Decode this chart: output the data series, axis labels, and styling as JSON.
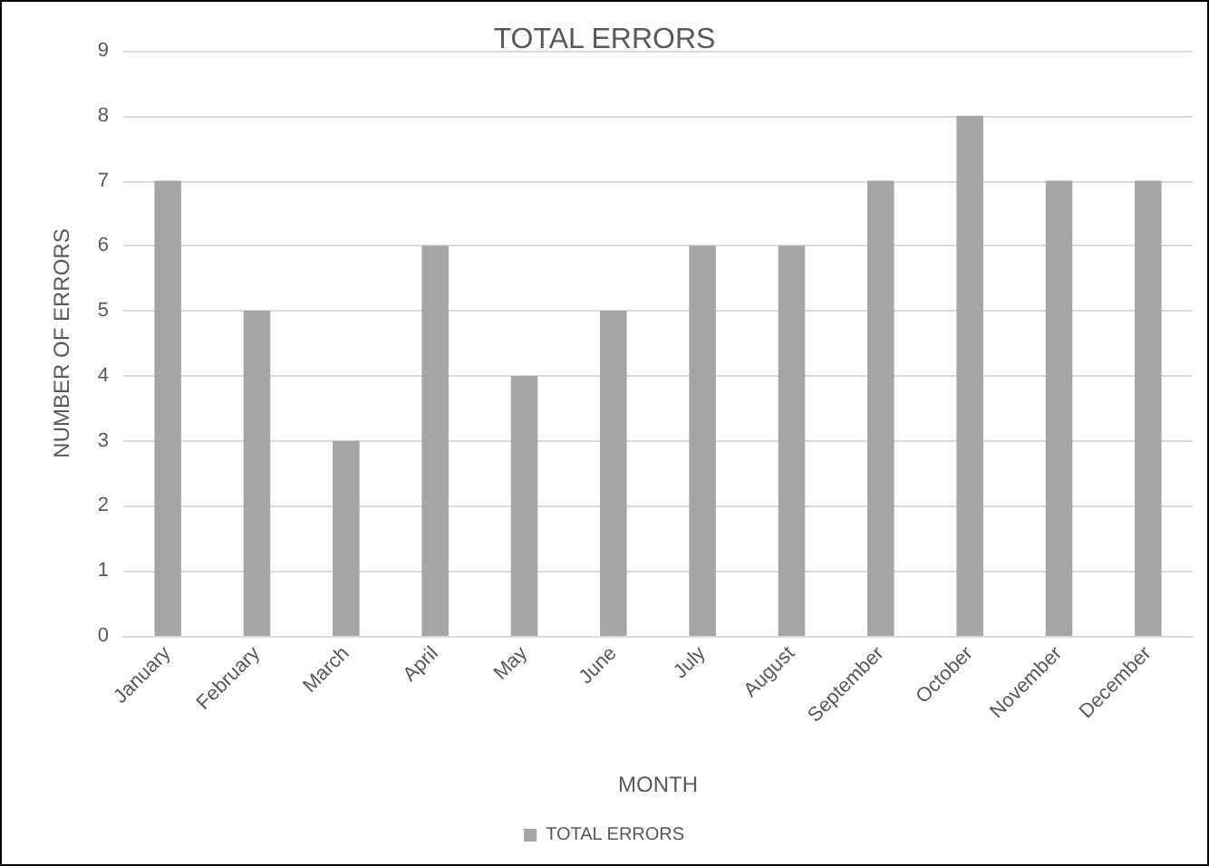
{
  "chart_data": {
    "type": "bar",
    "title": "TOTAL ERRORS",
    "xlabel": "MONTH",
    "ylabel": "NUMBER OF ERRORS",
    "categories": [
      "January",
      "February",
      "March",
      "April",
      "May",
      "June",
      "July",
      "August",
      "September",
      "October",
      "November",
      "December"
    ],
    "series": [
      {
        "name": "TOTAL ERRORS",
        "color": "#a5a5a5",
        "values": [
          7,
          5,
          3,
          6,
          4,
          5,
          6,
          6,
          7,
          8,
          7,
          7
        ]
      }
    ],
    "ylim": [
      0,
      9
    ],
    "yticks": [
      0,
      1,
      2,
      3,
      4,
      5,
      6,
      7,
      8,
      9
    ],
    "grid": "y",
    "legend": "bottom"
  }
}
